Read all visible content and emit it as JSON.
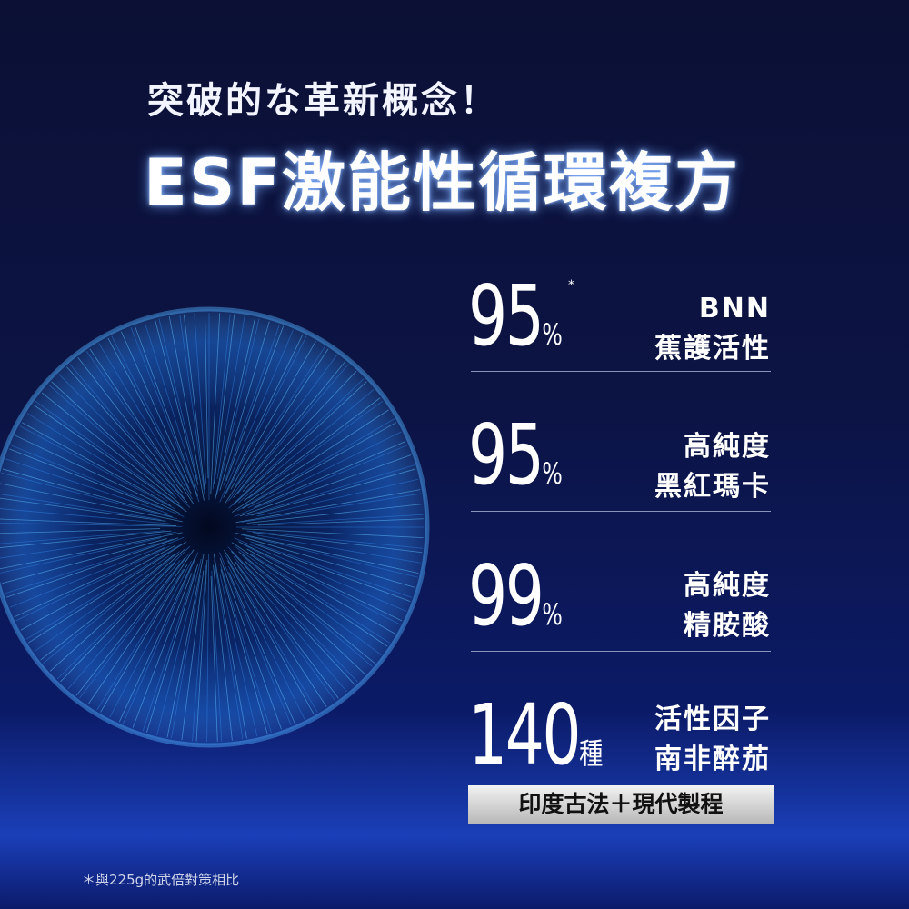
{
  "header": {
    "subtitle": "突破的な革新概念！",
    "title": "ESF激能性循環複方"
  },
  "stats": [
    {
      "number": 95,
      "unit": "%",
      "note_mark": "*",
      "lines": [
        "BNN",
        "蕉護活性"
      ]
    },
    {
      "number": 95,
      "unit": "%",
      "lines": [
        "高純度",
        "黑紅瑪卡"
      ]
    },
    {
      "number": 99,
      "unit": "%",
      "lines": [
        "高純度",
        "精胺酸"
      ]
    },
    {
      "number": 140,
      "unit": "種",
      "lines": [
        "活性因子",
        "南非醉茄"
      ]
    }
  ],
  "banner": "印度古法＋現代製程",
  "footnote": "＊與225g的武倍對策相比"
}
